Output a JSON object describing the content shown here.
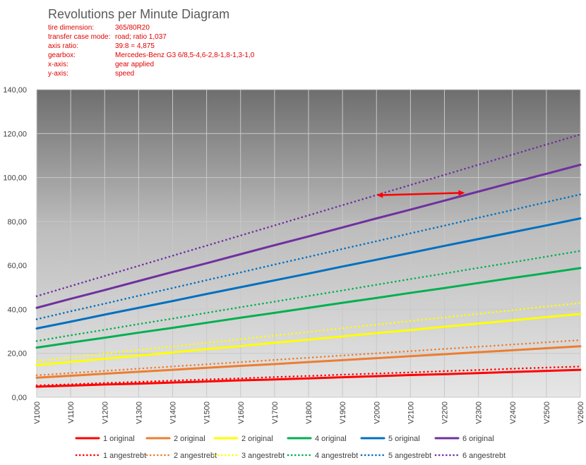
{
  "chart_data": {
    "type": "line",
    "title": "Revolutions per Minute Diagram",
    "info": [
      {
        "label": "tire dimension:",
        "value": "365/80R20"
      },
      {
        "label": "transfer case mode:",
        "value": "road; ratio 1,037"
      },
      {
        "label": "axis ratio:",
        "value": "39:8 = 4,875"
      },
      {
        "label": "gearbox:",
        "value": "Mercedes-Benz G3  6/8,5-4,6-2,8-1,8-1,3-1,0"
      },
      {
        "label": "x-axis:",
        "value": "gear applied"
      },
      {
        "label": "y-axis:",
        "value": "speed"
      }
    ],
    "categories": [
      "V1000",
      "V1100",
      "V1200",
      "V1300",
      "V1400",
      "V1500",
      "V1600",
      "V1700",
      "V1800",
      "V1900",
      "V2000",
      "V2100",
      "V2200",
      "V2300",
      "V2400",
      "V2500",
      "V2600"
    ],
    "ylim": [
      0,
      140
    ],
    "yticks": [
      "0,00",
      "20,00",
      "40,00",
      "60,00",
      "80,00",
      "100,00",
      "120,00",
      "140,00"
    ],
    "grid": true,
    "legend_position": "bottom",
    "series": [
      {
        "name": "1 original",
        "color": "#ff0000",
        "style": "solid",
        "values": [
          4.8,
          5.3,
          5.8,
          6.2,
          6.7,
          7.2,
          7.7,
          8.1,
          8.6,
          9.1,
          9.6,
          10.1,
          10.5,
          11.0,
          11.5,
          12.0,
          12.5
        ]
      },
      {
        "name": "2 original",
        "color": "#ed7d31",
        "style": "solid",
        "values": [
          8.9,
          9.8,
          10.7,
          11.6,
          12.5,
          13.4,
          14.3,
          15.1,
          16.0,
          16.9,
          17.8,
          18.7,
          19.6,
          20.5,
          21.4,
          22.3,
          23.2
        ]
      },
      {
        "name": "2 original",
        "color": "#ffff00",
        "style": "solid",
        "values": [
          14.6,
          16.1,
          17.5,
          19.0,
          20.4,
          21.9,
          23.3,
          24.8,
          26.2,
          27.7,
          29.2,
          30.6,
          32.1,
          33.5,
          35.0,
          36.5,
          37.9
        ]
      },
      {
        "name": "4 original",
        "color": "#00b050",
        "style": "solid",
        "values": [
          22.6,
          24.9,
          27.1,
          29.4,
          31.6,
          33.9,
          36.2,
          38.4,
          40.7,
          43.0,
          45.2,
          47.5,
          49.7,
          52.0,
          54.3,
          56.5,
          58.8
        ]
      },
      {
        "name": "5 original",
        "color": "#0070c0",
        "style": "solid",
        "values": [
          31.3,
          34.4,
          37.6,
          40.7,
          43.8,
          47.0,
          50.1,
          53.2,
          56.3,
          59.5,
          62.6,
          65.7,
          68.9,
          72.0,
          75.1,
          78.2,
          81.4
        ]
      },
      {
        "name": "6 original",
        "color": "#7030a0",
        "style": "solid",
        "values": [
          40.7,
          44.8,
          48.8,
          52.9,
          57.0,
          61.0,
          65.1,
          69.2,
          73.2,
          77.3,
          81.4,
          85.4,
          89.5,
          93.6,
          97.7,
          101.7,
          105.8
        ]
      },
      {
        "name": "1 angestrebt",
        "color": "#ff0000",
        "style": "dotted",
        "values": [
          5.4,
          5.9,
          6.5,
          7.0,
          7.6,
          8.1,
          8.6,
          9.2,
          9.7,
          10.3,
          10.8,
          11.3,
          11.9,
          12.4,
          13.0,
          13.5,
          14.0
        ]
      },
      {
        "name": "2 angestrebt",
        "color": "#ed7d31",
        "style": "dotted",
        "values": [
          10.0,
          11.0,
          12.0,
          13.0,
          14.0,
          15.0,
          16.0,
          17.0,
          18.0,
          19.0,
          20.0,
          21.0,
          22.0,
          23.0,
          24.0,
          25.0,
          26.0
        ]
      },
      {
        "name": "3 angestrebt",
        "color": "#ffff00",
        "style": "dotted",
        "values": [
          16.5,
          18.2,
          19.8,
          21.5,
          23.1,
          24.8,
          26.4,
          28.1,
          29.7,
          31.4,
          33.0,
          34.7,
          36.3,
          38.0,
          39.6,
          41.3,
          42.9
        ]
      },
      {
        "name": "4 angestrebt",
        "color": "#00b050",
        "style": "dotted",
        "values": [
          25.6,
          28.2,
          30.7,
          33.3,
          35.8,
          38.4,
          41.0,
          43.5,
          46.1,
          48.6,
          51.2,
          53.8,
          56.3,
          58.9,
          61.4,
          64.0,
          66.6
        ]
      },
      {
        "name": "5 angestrebt",
        "color": "#0070c0",
        "style": "dotted",
        "values": [
          35.5,
          39.1,
          42.6,
          46.2,
          49.7,
          53.3,
          56.8,
          60.4,
          63.9,
          67.5,
          71.0,
          74.6,
          78.1,
          81.7,
          85.2,
          88.8,
          92.3
        ]
      },
      {
        "name": "6 angestrebt",
        "color": "#7030a0",
        "style": "dotted",
        "values": [
          46.0,
          50.6,
          55.2,
          59.8,
          64.4,
          69.0,
          73.6,
          78.2,
          82.8,
          87.4,
          92.0,
          96.6,
          101.2,
          105.8,
          110.4,
          115.0,
          119.6
        ]
      }
    ],
    "annotation": {
      "type": "double-arrow",
      "color": "#ff0000",
      "from": {
        "x_index": 10,
        "y": 92
      },
      "to": {
        "x_index": 12.6,
        "y": 93
      }
    }
  }
}
